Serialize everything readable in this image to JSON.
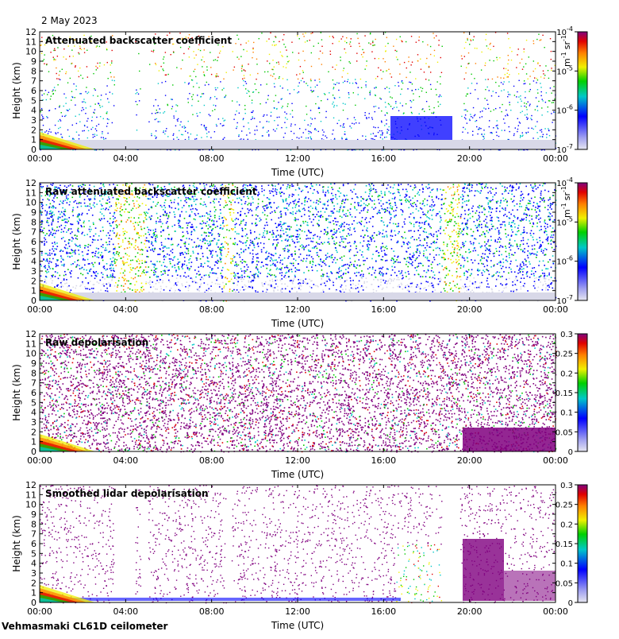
{
  "header": {
    "date": "2 May 2023"
  },
  "footer": {
    "instrument": "Vehmasmaki CL61D ceilometer"
  },
  "chart_data": [
    {
      "type": "heatmap",
      "title": "Attenuated backscatter coefficient",
      "xlabel": "Time (UTC)",
      "ylabel": "Height (km)",
      "x_ticks": [
        "00:00",
        "04:00",
        "08:00",
        "12:00",
        "16:00",
        "20:00",
        "00:00"
      ],
      "y_ticks": [
        0,
        1,
        2,
        3,
        4,
        5,
        6,
        7,
        8,
        9,
        10,
        11,
        12
      ],
      "ylim": [
        0,
        12
      ],
      "colorbar": {
        "scale": "log",
        "range": [
          1e-07,
          0.0001
        ],
        "ticks": [
          "10",
          "10",
          "10",
          "10"
        ],
        "tick_exponents": [
          "-7",
          "-6",
          "-5",
          "-4"
        ],
        "units": "m-1 sr-1",
        "units_base": [
          "m",
          "sr"
        ],
        "units_exp": [
          "-1",
          "-1"
        ]
      }
    },
    {
      "type": "heatmap",
      "title": "Raw attenuated backscatter coefficient",
      "xlabel": "Time (UTC)",
      "ylabel": "Height (km)",
      "x_ticks": [
        "00:00",
        "04:00",
        "08:00",
        "12:00",
        "16:00",
        "20:00",
        "00:00"
      ],
      "y_ticks": [
        0,
        1,
        2,
        3,
        4,
        5,
        6,
        7,
        8,
        9,
        10,
        11,
        12
      ],
      "ylim": [
        0,
        12
      ],
      "colorbar": {
        "scale": "log",
        "range": [
          1e-07,
          0.0001
        ],
        "ticks": [
          "10",
          "10",
          "10",
          "10"
        ],
        "tick_exponents": [
          "-7",
          "-6",
          "-5",
          "-4"
        ],
        "units": "m-1 sr-1",
        "units_base": [
          "m",
          "sr"
        ],
        "units_exp": [
          "-1",
          "-1"
        ]
      }
    },
    {
      "type": "heatmap",
      "title": "Raw depolarisation",
      "xlabel": "Time (UTC)",
      "ylabel": "Height (km)",
      "x_ticks": [
        "00:00",
        "04:00",
        "08:00",
        "12:00",
        "16:00",
        "20:00",
        "00:00"
      ],
      "y_ticks": [
        0,
        1,
        2,
        3,
        4,
        5,
        6,
        7,
        8,
        9,
        10,
        11,
        12
      ],
      "ylim": [
        0,
        12
      ],
      "colorbar": {
        "scale": "linear",
        "range": [
          0,
          0.3
        ],
        "ticks": [
          "0",
          "0.05",
          "0.1",
          "0.15",
          "0.2",
          "0.25",
          "0.3"
        ]
      }
    },
    {
      "type": "heatmap",
      "title": "Smoothed lidar depolarisation",
      "xlabel": "Time (UTC)",
      "ylabel": "Height (km)",
      "x_ticks": [
        "00:00",
        "04:00",
        "08:00",
        "12:00",
        "16:00",
        "20:00",
        "00:00"
      ],
      "y_ticks": [
        0,
        1,
        2,
        3,
        4,
        5,
        6,
        7,
        8,
        9,
        10,
        11,
        12
      ],
      "ylim": [
        0,
        12
      ],
      "colorbar": {
        "scale": "linear",
        "range": [
          0,
          0.3
        ],
        "ticks": [
          "0",
          "0.05",
          "0.1",
          "0.15",
          "0.2",
          "0.25",
          "0.3"
        ]
      }
    }
  ],
  "colors": {
    "low": "#d8d8e8",
    "blue": "#0000ff",
    "cyan": "#00c8c8",
    "green": "#00c800",
    "yellow": "#f0f000",
    "orange": "#ff8000",
    "red": "#e00000",
    "purple": "#80007f"
  }
}
